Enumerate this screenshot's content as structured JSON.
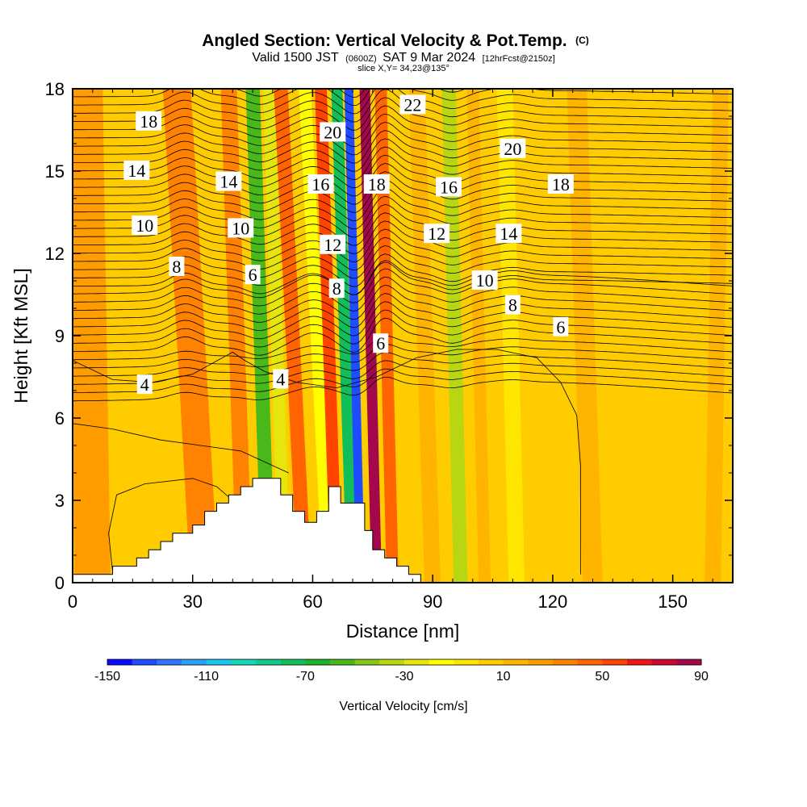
{
  "title": {
    "main": "Angled Section: Vertical Velocity & Pot.Temp.",
    "copyright": "(C)",
    "valid_a": "Valid 1500 JST",
    "valid_zulu": "(0600Z)",
    "valid_b": "SAT 9 Mar 2024",
    "forecast": "[12hrFcst@2150z]",
    "slice": "slice X,Y= 34,23@135°"
  },
  "chart_data": {
    "type": "heatmap",
    "xlabel": "Distance [nm]",
    "ylabel": "Height [Kft MSL]",
    "xlim": [
      0,
      165
    ],
    "ylim": [
      0,
      18
    ],
    "xticks": [
      0,
      30,
      60,
      90,
      120,
      150
    ],
    "yticks": [
      0,
      3,
      6,
      9,
      12,
      15,
      18
    ],
    "grid": false,
    "background_value": 2,
    "velocity_field": {
      "description_units": "cm/s",
      "bands": [
        {
          "x": 5,
          "top_x": 3,
          "value": 20,
          "width": 9
        },
        {
          "x": 21,
          "top_x": 18,
          "value": 6,
          "width": 6
        },
        {
          "x": 33,
          "top_x": 26,
          "value": 38,
          "width": 7
        },
        {
          "x": 43,
          "top_x": 39,
          "value": 30,
          "width": 4
        },
        {
          "x": 49,
          "top_x": 45,
          "value": -58,
          "width": 3.5
        },
        {
          "x": 53,
          "top_x": 49,
          "value": -24,
          "width": 3
        },
        {
          "x": 58,
          "top_x": 52,
          "value": 45,
          "width": 3.5
        },
        {
          "x": 64,
          "top_x": 58,
          "value": -20,
          "width": 3
        },
        {
          "x": 66,
          "top_x": 62,
          "value": 55,
          "width": 3
        },
        {
          "x": 70,
          "top_x": 66,
          "value": -75,
          "width": 2.8
        },
        {
          "x": 72,
          "top_x": 69,
          "value": -140,
          "width": 2.2
        },
        {
          "x": 76,
          "top_x": 73,
          "value": 88,
          "width": 2.6
        },
        {
          "x": 80,
          "top_x": 77,
          "value": 45,
          "width": 3
        },
        {
          "x": 90,
          "top_x": 86,
          "value": 14,
          "width": 4
        },
        {
          "x": 97,
          "top_x": 94,
          "value": -40,
          "width": 3.5
        },
        {
          "x": 103,
          "top_x": 100,
          "value": 16,
          "width": 3
        },
        {
          "x": 111,
          "top_x": 108,
          "value": -10,
          "width": 4
        },
        {
          "x": 130,
          "top_x": 126,
          "value": 10,
          "width": 5
        },
        {
          "x": 148,
          "top_x": 144,
          "value": 8,
          "width": 5
        },
        {
          "x": 160,
          "top_x": 162,
          "value": 16,
          "width": 4
        }
      ]
    },
    "terrain": {
      "x": [
        0,
        10,
        10,
        16,
        16,
        19,
        19,
        22,
        22,
        25,
        25,
        30,
        30,
        33,
        33,
        36,
        36,
        39,
        39,
        42,
        42,
        45,
        45,
        52,
        52,
        55,
        55,
        58,
        58,
        61,
        61,
        64,
        64,
        67,
        67,
        73,
        73,
        75,
        75,
        78,
        78,
        81,
        81,
        84,
        84,
        87,
        87,
        165
      ],
      "z": [
        0.3,
        0.3,
        0.6,
        0.6,
        0.9,
        0.9,
        1.2,
        1.2,
        1.5,
        1.5,
        1.8,
        1.8,
        2.1,
        2.1,
        2.6,
        2.6,
        2.9,
        2.9,
        3.2,
        3.2,
        3.5,
        3.5,
        3.8,
        3.8,
        3.2,
        3.2,
        2.6,
        2.6,
        2.2,
        2.2,
        2.6,
        2.6,
        3.5,
        3.5,
        2.9,
        2.9,
        1.9,
        1.9,
        1.2,
        1.2,
        0.9,
        0.9,
        0.6,
        0.6,
        0.3,
        0.3,
        0.0,
        0.0
      ]
    },
    "theta_contours": {
      "labels": [
        {
          "text": "22",
          "x": 85,
          "y": 17.4
        },
        {
          "text": "20",
          "x": 65,
          "y": 16.4
        },
        {
          "text": "20",
          "x": 110,
          "y": 15.8
        },
        {
          "text": "18",
          "x": 19,
          "y": 16.8
        },
        {
          "text": "18",
          "x": 76,
          "y": 14.5
        },
        {
          "text": "18",
          "x": 122,
          "y": 14.5
        },
        {
          "text": "16",
          "x": 62,
          "y": 14.5
        },
        {
          "text": "16",
          "x": 94,
          "y": 14.4
        },
        {
          "text": "14",
          "x": 16,
          "y": 15.0
        },
        {
          "text": "14",
          "x": 39,
          "y": 14.6
        },
        {
          "text": "14",
          "x": 109,
          "y": 12.7
        },
        {
          "text": "12",
          "x": 65,
          "y": 12.3
        },
        {
          "text": "12",
          "x": 91,
          "y": 12.7
        },
        {
          "text": "10",
          "x": 18,
          "y": 13.0
        },
        {
          "text": "10",
          "x": 42,
          "y": 12.9
        },
        {
          "text": "10",
          "x": 103,
          "y": 11.0
        },
        {
          "text": "8",
          "x": 26,
          "y": 11.5
        },
        {
          "text": "8",
          "x": 66,
          "y": 10.7
        },
        {
          "text": "8",
          "x": 110,
          "y": 10.1
        },
        {
          "text": "6",
          "x": 45,
          "y": 11.2
        },
        {
          "text": "6",
          "x": 77,
          "y": 8.7
        },
        {
          "text": "6",
          "x": 122,
          "y": 9.3
        },
        {
          "text": "4",
          "x": 18,
          "y": 7.2
        },
        {
          "text": "4",
          "x": 52,
          "y": 7.4
        }
      ]
    }
  },
  "colorbar": {
    "title": "Vertical Velocity [cm/s]",
    "min": -150,
    "max": 90,
    "step": 10,
    "tick_values": [
      -150,
      -110,
      -70,
      -30,
      10,
      50,
      90
    ],
    "tick_labels": [
      "-150",
      "-110",
      "-70",
      "-30",
      "10",
      "50",
      "90"
    ],
    "colors": [
      "#0a0aff",
      "#1f4cff",
      "#2e74ff",
      "#2aa0f8",
      "#1cc6f2",
      "#16d6b8",
      "#12c88c",
      "#12be5a",
      "#1cb22a",
      "#48b81a",
      "#84c616",
      "#b8d612",
      "#e6e60e",
      "#ffff00",
      "#ffe600",
      "#ffcc00",
      "#ffb400",
      "#ff9c00",
      "#ff8200",
      "#ff6400",
      "#ff4400",
      "#ee1616",
      "#cc0830",
      "#a4084c",
      "#7c0c70",
      "#5a0c8a"
    ]
  }
}
